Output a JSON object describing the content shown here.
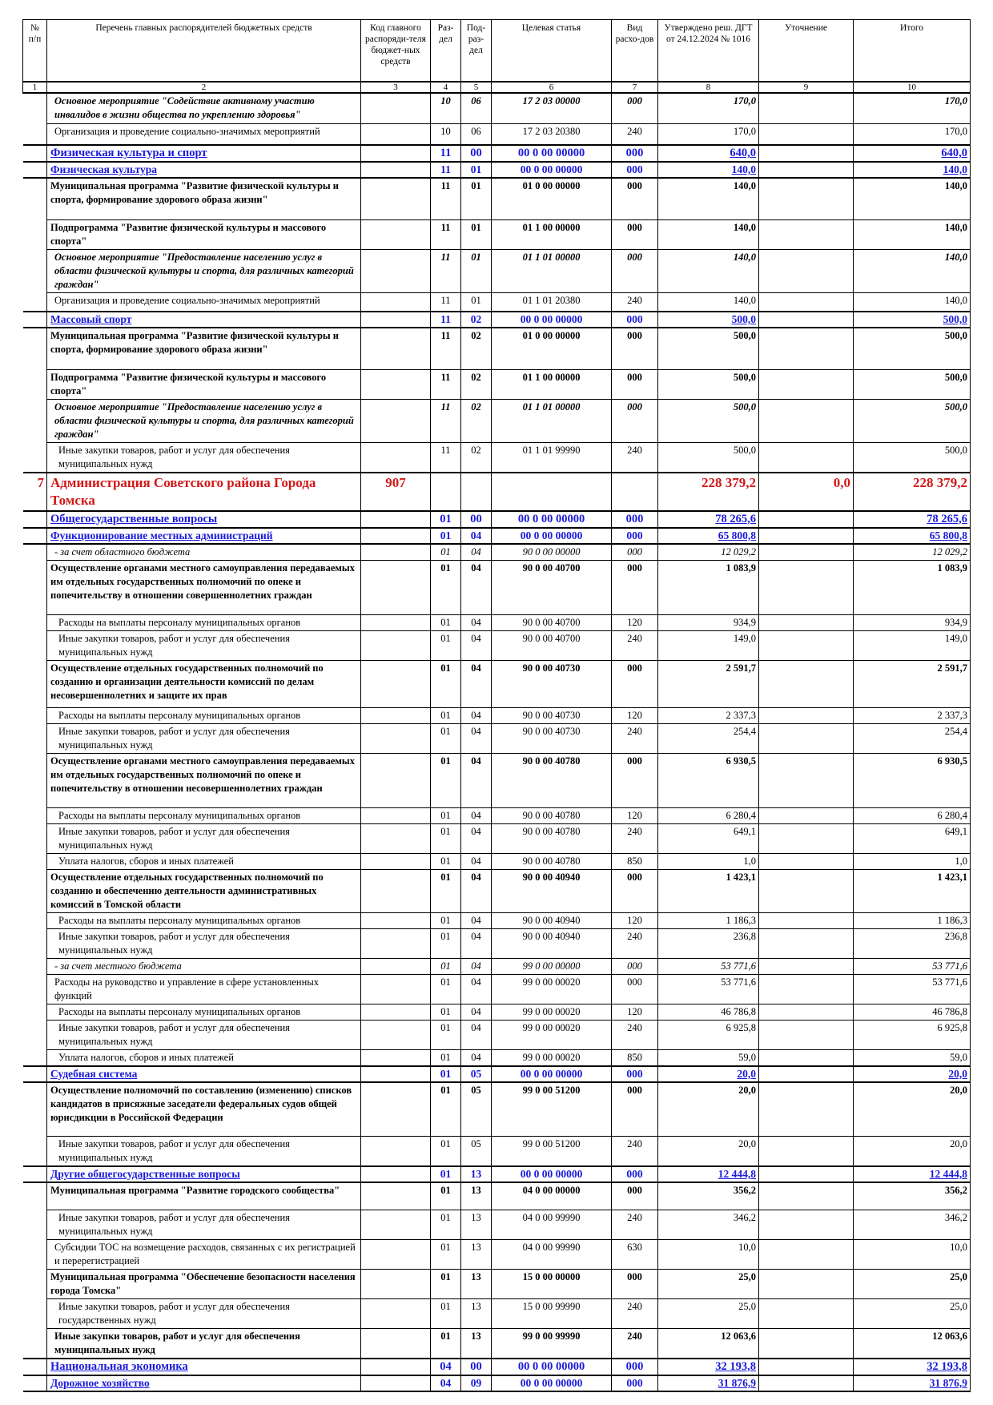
{
  "header": {
    "columns": [
      "№ п/п",
      "Перечень главных распорядителей бюджетных средств",
      "Код главного распоряди-теля бюджет-ных средств",
      "Раз-дел",
      "Под-раз-дел",
      "Целевая статья",
      "Вид расхо-дов",
      "Утверждено реш. ДГТ от 24.12.2024 № 1016",
      "Уточнение",
      "Итого"
    ],
    "numbers": [
      "1",
      "2",
      "3",
      "4",
      "5",
      "6",
      "7",
      "8",
      "9",
      "10"
    ]
  },
  "rows": [
    {
      "style": "bi",
      "name": "Основное мероприятие \"Содействие активному участию инвалидов в жизни общества по укреплению здоровья\"",
      "rz": "10",
      "prz": "06",
      "cs": "17 2 03 00000",
      "vr": "000",
      "appr": "170,0",
      "utoch": "",
      "itogo": "170,0",
      "h": 38
    },
    {
      "style": "n",
      "name": "Организация и проведение социально-значимых мероприятий",
      "rz": "10",
      "prz": "06",
      "cs": "17 2 03 20380",
      "vr": "240",
      "appr": "170,0",
      "utoch": "",
      "itogo": "170,0",
      "h": 27
    },
    {
      "style": "sec",
      "name": "Физическая культура и спорт",
      "rz": "11",
      "prz": "00",
      "cs": "00 0 00 00000",
      "vr": "000",
      "appr": "640,0",
      "utoch": "",
      "itogo": "640,0",
      "h": 19
    },
    {
      "style": "sub",
      "name": "Физическая культура",
      "rz": "11",
      "prz": "01",
      "cs": "00 0 00 00000",
      "vr": "000",
      "appr": "140,0",
      "utoch": "",
      "itogo": "140,0",
      "h": 16
    },
    {
      "style": "b",
      "name": "Муниципальная программа \"Развитие физической культуры и спорта, формирование здорового образа жизни\"",
      "rz": "11",
      "prz": "01",
      "cs": "01 0 00 00000",
      "vr": "000",
      "appr": "140,0",
      "utoch": "",
      "itogo": "140,0",
      "h": 52
    },
    {
      "style": "b",
      "name": "Подпрограмма \"Развитие физической культуры и массового спорта\"",
      "rz": "11",
      "prz": "01",
      "cs": "01 1 00 00000",
      "vr": "000",
      "appr": "140,0",
      "utoch": "",
      "itogo": "140,0",
      "h": 34
    },
    {
      "style": "bi",
      "name": "Основное мероприятие \"Предоставление населению услуг в области физической культуры и спорта, для различных категорий граждан\"",
      "rz": "11",
      "prz": "01",
      "cs": "01 1 01 00000",
      "vr": "000",
      "appr": "140,0",
      "utoch": "",
      "itogo": "140,0",
      "h": 52
    },
    {
      "style": "n",
      "name": "Организация и проведение социально-значимых мероприятий",
      "rz": "11",
      "prz": "01",
      "cs": "01 1 01 20380",
      "vr": "240",
      "appr": "140,0",
      "utoch": "",
      "itogo": "140,0",
      "h": 24
    },
    {
      "style": "sub",
      "name": "Массовый спорт",
      "rz": "11",
      "prz": "02",
      "cs": "00 0 00 00000",
      "vr": "000",
      "appr": "500,0",
      "utoch": "",
      "itogo": "500,0",
      "h": 16
    },
    {
      "style": "b",
      "name": "Муниципальная программа \"Развитие физической культуры и спорта, формирование здорового образа жизни\"",
      "rz": "11",
      "prz": "02",
      "cs": "01 0 00 00000",
      "vr": "000",
      "appr": "500,0",
      "utoch": "",
      "itogo": "500,0",
      "h": 52
    },
    {
      "style": "b",
      "name": "Подпрограмма \"Развитие физической культуры и массового спорта\"",
      "rz": "11",
      "prz": "02",
      "cs": "01 1 00 00000",
      "vr": "000",
      "appr": "500,0",
      "utoch": "",
      "itogo": "500,0",
      "h": 34
    },
    {
      "style": "bi",
      "name": "Основное мероприятие \"Предоставление населению услуг в области физической культуры и спорта, для различных категорий граждан\"",
      "rz": "11",
      "prz": "02",
      "cs": "01 1 01 00000",
      "vr": "000",
      "appr": "500,0",
      "utoch": "",
      "itogo": "500,0",
      "h": 52
    },
    {
      "style": "n2",
      "name": "Иные закупки товаров, работ и услуг для обеспечения муниципальных нужд",
      "rz": "11",
      "prz": "02",
      "cs": "01 1 01 99990",
      "vr": "240",
      "appr": "500,0",
      "utoch": "",
      "itogo": "500,0",
      "h": 34
    },
    {
      "style": "grbs",
      "nn": "7",
      "name": "Администрация Советского района Города Томска",
      "code": "907",
      "rz": "",
      "prz": "",
      "cs": "",
      "vr": "",
      "appr": "228 379,2",
      "utoch": "0,0",
      "itogo": "228 379,2",
      "h": 46
    },
    {
      "style": "sec",
      "name": "Общегосударственные вопросы",
      "rz": "01",
      "prz": "00",
      "cs": "00 0 00 00000",
      "vr": "000",
      "appr": "78 265,6",
      "utoch": "",
      "itogo": "78 265,6",
      "h": 19
    },
    {
      "style": "sub",
      "name": "Функционирование местных администраций",
      "rz": "01",
      "prz": "04",
      "cs": "00 0 00 00000",
      "vr": "000",
      "appr": "65 800,8",
      "utoch": "",
      "itogo": "65 800,8",
      "h": 16
    },
    {
      "style": "it",
      "name": "- за счет областного бюджета",
      "rz": "01",
      "prz": "04",
      "cs": "90 0 00 00000",
      "vr": "000",
      "appr": "12 029,2",
      "utoch": "",
      "itogo": "12 029,2",
      "h": 15
    },
    {
      "style": "b",
      "name": "Осуществление органами местного самоуправления передаваемых им отдельных государственных полномочий по опеке и попечительству в отношении совершеннолетних граждан",
      "rz": "01",
      "prz": "04",
      "cs": "90 0 00 40700",
      "vr": "000",
      "appr": "1 083,9",
      "utoch": "",
      "itogo": "1 083,9",
      "h": 68
    },
    {
      "style": "n2",
      "name": "Расходы на выплаты персоналу муниципальных органов",
      "rz": "01",
      "prz": "04",
      "cs": "90 0 00 40700",
      "vr": "120",
      "appr": "934,9",
      "utoch": "",
      "itogo": "934,9",
      "h": 16
    },
    {
      "style": "n2",
      "name": "Иные закупки товаров, работ и услуг для обеспечения муниципальных нужд",
      "rz": "01",
      "prz": "04",
      "cs": "90 0 00 40700",
      "vr": "240",
      "appr": "149,0",
      "utoch": "",
      "itogo": "149,0",
      "h": 34
    },
    {
      "style": "b",
      "name": "Осуществление отдельных государственных полномочий по созданию и организации деятельности комиссий по делам несовершеннолетних и защите их прав",
      "rz": "01",
      "prz": "04",
      "cs": "90 0 00 40730",
      "vr": "000",
      "appr": "2 591,7",
      "utoch": "",
      "itogo": "2 591,7",
      "h": 59
    },
    {
      "style": "n2",
      "name": "Расходы на выплаты персоналу муниципальных органов",
      "rz": "01",
      "prz": "04",
      "cs": "90 0 00 40730",
      "vr": "120",
      "appr": "2 337,3",
      "utoch": "",
      "itogo": "2 337,3",
      "h": 16
    },
    {
      "style": "n2",
      "name": "Иные закупки товаров, работ и услуг для обеспечения муниципальных нужд",
      "rz": "01",
      "prz": "04",
      "cs": "90 0 00 40730",
      "vr": "240",
      "appr": "254,4",
      "utoch": "",
      "itogo": "254,4",
      "h": 34
    },
    {
      "style": "b",
      "name": "Осуществление органами местного самоуправления передаваемых им отдельных государственных полномочий по опеке и попечительству в отношении несовершеннолетних граждан",
      "rz": "01",
      "prz": "04",
      "cs": "90 0 00 40780",
      "vr": "000",
      "appr": "6 930,5",
      "utoch": "",
      "itogo": "6 930,5",
      "h": 68
    },
    {
      "style": "n2",
      "name": "Расходы на выплаты персоналу муниципальных органов",
      "rz": "01",
      "prz": "04",
      "cs": "90 0 00 40780",
      "vr": "120",
      "appr": "6 280,4",
      "utoch": "",
      "itogo": "6 280,4",
      "h": 16
    },
    {
      "style": "n2",
      "name": "Иные закупки товаров, работ и услуг для обеспечения муниципальных нужд",
      "rz": "01",
      "prz": "04",
      "cs": "90 0 00 40780",
      "vr": "240",
      "appr": "649,1",
      "utoch": "",
      "itogo": "649,1",
      "h": 34
    },
    {
      "style": "n2",
      "name": "Уплата налогов, сборов и иных платежей",
      "rz": "01",
      "prz": "04",
      "cs": "90 0 00 40780",
      "vr": "850",
      "appr": "1,0",
      "utoch": "",
      "itogo": "1,0",
      "h": 16
    },
    {
      "style": "b",
      "name": "Осуществление отдельных государственных полномочий по созданию и обеспечению деятельности административных комиссий в Томской области",
      "rz": "01",
      "prz": "04",
      "cs": "90 0 00 40940",
      "vr": "000",
      "appr": "1 423,1",
      "utoch": "",
      "itogo": "1 423,1",
      "h": 52
    },
    {
      "style": "n2",
      "name": "Расходы на выплаты персоналу муниципальных органов",
      "rz": "01",
      "prz": "04",
      "cs": "90 0 00 40940",
      "vr": "120",
      "appr": "1 186,3",
      "utoch": "",
      "itogo": "1 186,3",
      "h": 16
    },
    {
      "style": "n2",
      "name": "Иные закупки товаров, работ и услуг для обеспечения муниципальных нужд",
      "rz": "01",
      "prz": "04",
      "cs": "90 0 00 40940",
      "vr": "240",
      "appr": "236,8",
      "utoch": "",
      "itogo": "236,8",
      "h": 34
    },
    {
      "style": "it",
      "name": "- за счет местного бюджета",
      "rz": "01",
      "prz": "04",
      "cs": "99 0 00 00000",
      "vr": "000",
      "appr": "53 771,6",
      "utoch": "",
      "itogo": "53 771,6",
      "h": 15
    },
    {
      "style": "n",
      "name": "Расходы на руководство и управление в сфере установленных функций",
      "rz": "01",
      "prz": "04",
      "cs": "99 0 00 00020",
      "vr": "000",
      "appr": "53 771,6",
      "utoch": "",
      "itogo": "53 771,6",
      "h": 34
    },
    {
      "style": "n2",
      "name": "Расходы на выплаты персоналу муниципальных органов",
      "rz": "01",
      "prz": "04",
      "cs": "99 0 00 00020",
      "vr": "120",
      "appr": "46 786,8",
      "utoch": "",
      "itogo": "46 786,8",
      "h": 16
    },
    {
      "style": "n2",
      "name": "Иные закупки товаров, работ и услуг для обеспечения муниципальных нужд",
      "rz": "01",
      "prz": "04",
      "cs": "99 0 00 00020",
      "vr": "240",
      "appr": "6 925,8",
      "utoch": "",
      "itogo": "6 925,8",
      "h": 34
    },
    {
      "style": "n2",
      "name": "Уплата налогов, сборов и иных платежей",
      "rz": "01",
      "prz": "04",
      "cs": "99 0 00 00020",
      "vr": "850",
      "appr": "59,0",
      "utoch": "",
      "itogo": "59,0",
      "h": 16
    },
    {
      "style": "sub",
      "name": "Судебная система",
      "rz": "01",
      "prz": "05",
      "cs": "00 0 00 00000",
      "vr": "000",
      "appr": "20,0",
      "utoch": "",
      "itogo": "20,0",
      "h": 16
    },
    {
      "style": "b",
      "name": "Осуществление полномочий по составлению (изменению) списков кандидатов в присяжные заседатели федеральных судов общей юрисдикции в Российской Федерации",
      "rz": "01",
      "prz": "05",
      "cs": "99 0 00 51200",
      "vr": "000",
      "appr": "20,0",
      "utoch": "",
      "itogo": "20,0",
      "h": 68
    },
    {
      "style": "n2",
      "name": "Иные закупки товаров, работ и услуг для обеспечения муниципальных нужд",
      "rz": "01",
      "prz": "05",
      "cs": "99 0 00 51200",
      "vr": "240",
      "appr": "20,0",
      "utoch": "",
      "itogo": "20,0",
      "h": 34
    },
    {
      "style": "sub",
      "name": "Другие общегосударственные вопросы",
      "rz": "01",
      "prz": "13",
      "cs": "00 0 00 00000",
      "vr": "000",
      "appr": "12 444,8",
      "utoch": "",
      "itogo": "12 444,8",
      "h": 16
    },
    {
      "style": "b",
      "name": "Муниципальная программа \"Развитие городского сообщества\"",
      "rz": "01",
      "prz": "13",
      "cs": "04 0 00 00000",
      "vr": "000",
      "appr": "356,2",
      "utoch": "",
      "itogo": "356,2",
      "h": 34
    },
    {
      "style": "n2",
      "name": "Иные закупки товаров, работ и услуг для обеспечения муниципальных нужд",
      "rz": "01",
      "prz": "13",
      "cs": "04 0 00 99990",
      "vr": "240",
      "appr": "346,2",
      "utoch": "",
      "itogo": "346,2",
      "h": 34
    },
    {
      "style": "n",
      "name": "Субсидии ТОС на возмещение расходов, связанных с их регистрацией и перерегистрацией",
      "rz": "01",
      "prz": "13",
      "cs": "04 0 00 99990",
      "vr": "630",
      "appr": "10,0",
      "utoch": "",
      "itogo": "10,0",
      "h": 34
    },
    {
      "style": "b",
      "name": "Муниципальная программа \"Обеспечение безопасности населения города Томска\"",
      "rz": "01",
      "prz": "13",
      "cs": "15 0 00 00000",
      "vr": "000",
      "appr": "25,0",
      "utoch": "",
      "itogo": "25,0",
      "h": 34
    },
    {
      "style": "n2",
      "name": "Иные закупки товаров, работ и услуг для обеспечения государственных нужд",
      "rz": "01",
      "prz": "13",
      "cs": "15 0 00 99990",
      "vr": "240",
      "appr": "25,0",
      "utoch": "",
      "itogo": "25,0",
      "h": 34
    },
    {
      "style": "b2",
      "name": "Иные закупки товаров, работ и услуг для обеспечения муниципальных нужд",
      "rz": "01",
      "prz": "13",
      "cs": "99 0 00 99990",
      "vr": "240",
      "appr": "12 063,6",
      "utoch": "",
      "itogo": "12 063,6",
      "h": 34
    },
    {
      "style": "sec",
      "name": "Национальная экономика",
      "rz": "04",
      "prz": "00",
      "cs": "00 0 00 00000",
      "vr": "000",
      "appr": "32 193,8",
      "utoch": "",
      "itogo": "32 193,8",
      "h": 19
    },
    {
      "style": "sub",
      "name": "Дорожное хозяйство",
      "rz": "04",
      "prz": "09",
      "cs": "00 0 00 00000",
      "vr": "000",
      "appr": "31 876,9",
      "utoch": "",
      "itogo": "31 876,9",
      "h": 16
    }
  ]
}
